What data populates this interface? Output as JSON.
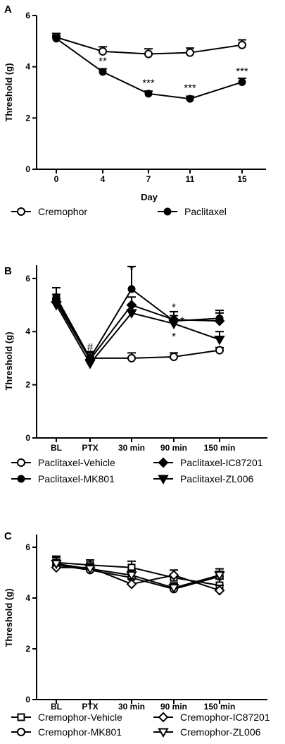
{
  "figure": {
    "panel_letters": [
      "A",
      "B",
      "C"
    ]
  },
  "chart_data": [
    {
      "type": "line",
      "panel": "A",
      "xlabel": "Day",
      "ylabel": "Threshold (g)",
      "categories": [
        "0",
        "4",
        "7",
        "11",
        "15"
      ],
      "ylim": [
        0,
        6
      ],
      "yticks": [
        "0",
        "2",
        "4",
        "6"
      ],
      "series": [
        {
          "name": "Cremophor",
          "marker": "open-circle",
          "values": [
            5.15,
            4.6,
            4.5,
            4.55,
            4.85
          ],
          "errors": [
            0.15,
            0.18,
            0.2,
            0.18,
            0.2
          ]
        },
        {
          "name": "Paclitaxel",
          "marker": "filled-circle",
          "values": [
            5.1,
            3.8,
            2.95,
            2.75,
            3.4
          ],
          "errors": [
            0.12,
            0.12,
            0.1,
            0.1,
            0.15
          ]
        }
      ],
      "annotations": [
        {
          "x": "4",
          "y": 4.25,
          "text": "**"
        },
        {
          "x": "7",
          "y": 3.4,
          "text": "***"
        },
        {
          "x": "11",
          "y": 3.2,
          "text": "***"
        },
        {
          "x": "15",
          "y": 3.85,
          "text": "***"
        }
      ]
    },
    {
      "type": "line",
      "panel": "B",
      "xlabel": "",
      "ylabel": "Threshold (g)",
      "categories": [
        "BL",
        "PTX",
        "30 min",
        "90 min",
        "150 min"
      ],
      "ylim": [
        0,
        6.5
      ],
      "yticks": [
        "0",
        "2",
        "4",
        "6"
      ],
      "series": [
        {
          "name": "Paclitaxel-Vehicle",
          "marker": "open-circle",
          "values": [
            5.2,
            3.0,
            3.0,
            3.05,
            3.3
          ],
          "errors": [
            0.2,
            0.25,
            0.2,
            0.15,
            0.1
          ]
        },
        {
          "name": "Paclitaxel-MK801",
          "marker": "filled-circle",
          "values": [
            5.3,
            3.0,
            5.6,
            4.4,
            4.5
          ],
          "errors": [
            0.35,
            0.25,
            0.85,
            0.35,
            0.3
          ]
        },
        {
          "name": "Paclitaxel-IC87201",
          "marker": "filled-diamond",
          "values": [
            5.1,
            2.95,
            5.0,
            4.45,
            4.4
          ],
          "errors": [
            0.3,
            0.25,
            0.3,
            0.3,
            0.3
          ]
        },
        {
          "name": "Paclitaxel-ZL006",
          "marker": "filled-triangle-down",
          "values": [
            5.0,
            2.8,
            4.7,
            4.3,
            3.7
          ],
          "errors": [
            0.25,
            0.2,
            0.3,
            0.3,
            0.3
          ]
        }
      ],
      "annotations": [
        {
          "x": "PTX",
          "y": 3.45,
          "text": "#"
        },
        {
          "x": "30 min",
          "y": 6.35,
          "text": "*"
        },
        {
          "x": "90 min",
          "y": 4.95,
          "text": "*"
        },
        {
          "x": "90 min",
          "y": 4.45,
          "text": "*",
          "dx": 12
        },
        {
          "x": "90 min",
          "y": 3.85,
          "text": "*"
        }
      ]
    },
    {
      "type": "line",
      "panel": "C",
      "xlabel": "",
      "ylabel": "Threshold (g)",
      "categories": [
        "BL",
        "PTX",
        "30 min",
        "90 min",
        "150 min"
      ],
      "ylim": [
        0,
        6.5
      ],
      "yticks": [
        "0",
        "2",
        "4",
        "6"
      ],
      "series": [
        {
          "name": "Cremophor-Vehicle",
          "marker": "open-square",
          "values": [
            5.4,
            5.3,
            5.2,
            4.8,
            4.5
          ],
          "errors": [
            0.25,
            0.2,
            0.25,
            0.3,
            0.25
          ]
        },
        {
          "name": "Cremophor-MK801",
          "marker": "open-circle",
          "values": [
            5.3,
            5.1,
            4.8,
            4.35,
            4.85
          ],
          "errors": [
            0.2,
            0.15,
            0.2,
            0.2,
            0.2
          ]
        },
        {
          "name": "Cremophor-IC87201",
          "marker": "open-diamond",
          "values": [
            5.2,
            5.2,
            4.55,
            4.9,
            4.3
          ],
          "errors": [
            0.2,
            0.15,
            0.2,
            0.2,
            0.2
          ]
        },
        {
          "name": "Cremophor-ZL006",
          "marker": "open-triangle-down",
          "values": [
            5.35,
            5.15,
            4.9,
            4.4,
            4.9
          ],
          "errors": [
            0.25,
            0.2,
            0.2,
            0.2,
            0.25
          ]
        }
      ],
      "annotations": []
    }
  ]
}
